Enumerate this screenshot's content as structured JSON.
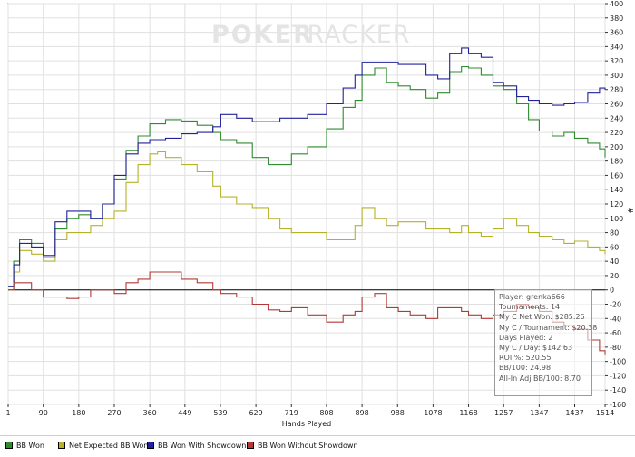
{
  "watermark": {
    "left": "POKER",
    "right": "TRACKER"
  },
  "chart_data": {
    "type": "line",
    "xlabel": "Hands Played",
    "ylabel": "#",
    "xlim": [
      1,
      1514
    ],
    "ylim": [
      -160,
      400
    ],
    "x_ticks": [
      1,
      90,
      180,
      270,
      360,
      449,
      539,
      629,
      719,
      808,
      898,
      988,
      1078,
      1168,
      1257,
      1347,
      1437,
      1514
    ],
    "y_ticks": [
      -160,
      -140,
      -120,
      -100,
      -80,
      -60,
      -40,
      -20,
      0,
      20,
      40,
      60,
      80,
      100,
      120,
      140,
      160,
      180,
      200,
      220,
      240,
      260,
      280,
      300,
      320,
      340,
      360,
      380,
      400
    ],
    "grid": true,
    "series": [
      {
        "name": "BB Won",
        "color": "#2e8b2e",
        "x": [
          1,
          15,
          30,
          60,
          90,
          120,
          150,
          180,
          210,
          240,
          270,
          300,
          330,
          360,
          400,
          440,
          480,
          520,
          540,
          580,
          620,
          660,
          690,
          719,
          760,
          808,
          850,
          880,
          898,
          930,
          960,
          990,
          1020,
          1060,
          1090,
          1120,
          1150,
          1168,
          1200,
          1230,
          1257,
          1290,
          1320,
          1347,
          1380,
          1410,
          1437,
          1470,
          1500,
          1514
        ],
        "y": [
          5,
          40,
          70,
          65,
          45,
          85,
          100,
          105,
          100,
          120,
          155,
          195,
          215,
          232,
          238,
          236,
          230,
          220,
          210,
          205,
          185,
          175,
          175,
          190,
          200,
          225,
          255,
          265,
          300,
          310,
          290,
          285,
          280,
          268,
          275,
          305,
          312,
          310,
          300,
          285,
          280,
          260,
          238,
          222,
          215,
          220,
          212,
          205,
          197,
          185
        ]
      },
      {
        "name": "Net Expected BB Won",
        "color": "#b5b22a",
        "x": [
          1,
          15,
          30,
          60,
          90,
          120,
          150,
          180,
          210,
          240,
          270,
          300,
          330,
          360,
          380,
          400,
          440,
          480,
          520,
          540,
          580,
          620,
          660,
          690,
          719,
          760,
          808,
          850,
          880,
          898,
          930,
          960,
          990,
          1020,
          1060,
          1090,
          1120,
          1150,
          1168,
          1200,
          1230,
          1257,
          1290,
          1320,
          1347,
          1380,
          1410,
          1437,
          1470,
          1500,
          1514
        ],
        "y": [
          0,
          25,
          55,
          50,
          40,
          70,
          80,
          80,
          90,
          100,
          110,
          150,
          175,
          190,
          193,
          185,
          175,
          165,
          145,
          130,
          120,
          115,
          100,
          85,
          80,
          80,
          70,
          70,
          90,
          115,
          100,
          90,
          95,
          95,
          85,
          85,
          80,
          90,
          80,
          75,
          85,
          100,
          90,
          80,
          75,
          70,
          65,
          68,
          60,
          55,
          50
        ]
      },
      {
        "name": "BB Won With Showdown",
        "color": "#22229a",
        "x": [
          1,
          15,
          30,
          60,
          90,
          120,
          150,
          180,
          210,
          240,
          270,
          300,
          330,
          360,
          400,
          440,
          480,
          520,
          540,
          580,
          620,
          660,
          690,
          719,
          760,
          808,
          850,
          880,
          898,
          930,
          960,
          990,
          1020,
          1060,
          1090,
          1120,
          1150,
          1168,
          1200,
          1230,
          1257,
          1290,
          1320,
          1347,
          1380,
          1410,
          1437,
          1470,
          1500,
          1514
        ],
        "y": [
          5,
          35,
          65,
          60,
          48,
          95,
          110,
          110,
          100,
          120,
          160,
          190,
          205,
          210,
          212,
          218,
          220,
          228,
          245,
          240,
          235,
          235,
          240,
          240,
          245,
          260,
          282,
          300,
          318,
          318,
          318,
          315,
          315,
          300,
          295,
          330,
          338,
          330,
          325,
          290,
          285,
          270,
          265,
          260,
          258,
          260,
          262,
          275,
          282,
          280
        ]
      },
      {
        "name": "BB Won Without Showdown",
        "color": "#b03a36",
        "x": [
          1,
          15,
          30,
          60,
          90,
          120,
          150,
          180,
          210,
          240,
          270,
          300,
          330,
          360,
          400,
          440,
          480,
          520,
          540,
          580,
          620,
          660,
          690,
          719,
          760,
          808,
          850,
          880,
          898,
          930,
          960,
          990,
          1020,
          1060,
          1090,
          1120,
          1150,
          1168,
          1200,
          1230,
          1257,
          1290,
          1320,
          1347,
          1380,
          1410,
          1437,
          1470,
          1500,
          1514
        ],
        "y": [
          0,
          10,
          10,
          0,
          -10,
          -10,
          -12,
          -10,
          0,
          0,
          -5,
          10,
          15,
          25,
          25,
          15,
          10,
          0,
          -5,
          -10,
          -20,
          -28,
          -30,
          -25,
          -35,
          -45,
          -35,
          -30,
          -10,
          -5,
          -25,
          -30,
          -35,
          -40,
          -25,
          -25,
          -30,
          -35,
          -40,
          -35,
          -30,
          -20,
          -25,
          -30,
          -45,
          -50,
          -55,
          -70,
          -85,
          -90
        ]
      }
    ]
  },
  "stats": [
    "Player: grenka666",
    "Tournaments: 14",
    "My C Net Won: $285.26",
    "My C / Tournament: $20.38",
    "Days Played: 2",
    "My C / Day: $142.63",
    "ROI %: 520.55",
    "BB/100: 24.98",
    "All-In Adj BB/100: 8.70"
  ],
  "legend": [
    {
      "label": "BB Won",
      "color": "#2e8b2e"
    },
    {
      "label": "Net Expected BB Won",
      "color": "#b5b22a"
    },
    {
      "label": "BB Won With Showdown",
      "color": "#22229a"
    },
    {
      "label": "BB Won Without Showdown",
      "color": "#b03a36"
    }
  ]
}
